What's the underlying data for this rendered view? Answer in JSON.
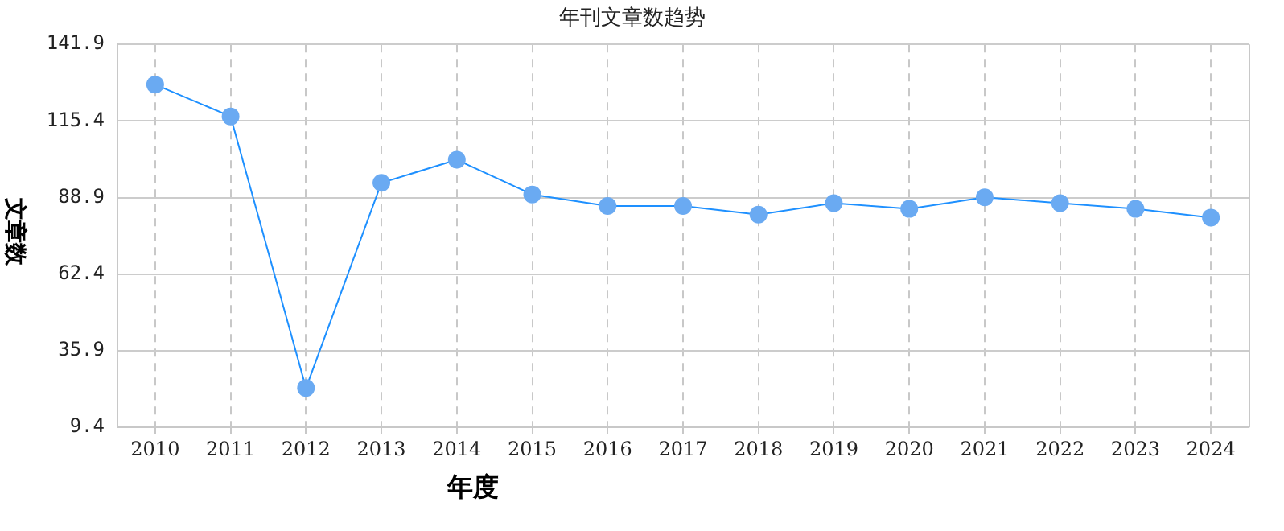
{
  "chart_data": {
    "type": "line",
    "title": "年刊文章数趋势",
    "xlabel": "年度",
    "ylabel": "文章数",
    "categories": [
      "2010",
      "2011",
      "2012",
      "2013",
      "2014",
      "2015",
      "2016",
      "2017",
      "2018",
      "2019",
      "2020",
      "2021",
      "2022",
      "2023",
      "2024"
    ],
    "series": [
      {
        "color": "#1e90ff",
        "values": [
          128,
          117,
          23,
          94,
          102,
          90,
          86,
          86,
          83,
          87,
          85,
          89,
          87,
          85,
          82
        ]
      }
    ],
    "ylim": [
      9.4,
      141.9
    ],
    "yticks": [
      9.4,
      35.9,
      62.4,
      88.9,
      115.4,
      141.9
    ],
    "grid": true,
    "legend": false,
    "marker": "circle",
    "line_style": "solid"
  }
}
